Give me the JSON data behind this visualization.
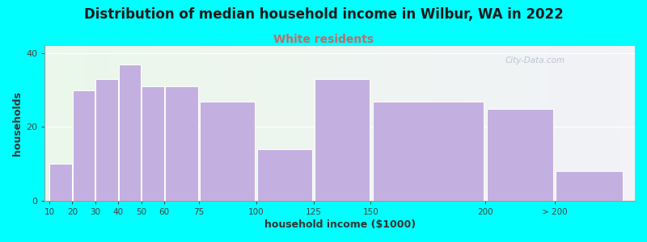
{
  "title": "Distribution of median household income in Wilbur, WA in 2022",
  "subtitle": "White residents",
  "xlabel": "household income ($1000)",
  "ylabel": "households",
  "bar_lefts": [
    10,
    20,
    30,
    40,
    50,
    60,
    75,
    100,
    125,
    150,
    200,
    230
  ],
  "bar_rights": [
    20,
    30,
    40,
    50,
    60,
    75,
    100,
    125,
    150,
    200,
    230,
    260
  ],
  "bar_values": [
    10,
    30,
    33,
    37,
    31,
    31,
    27,
    14,
    33,
    27,
    25,
    8
  ],
  "bar_color": "#c4b0e0",
  "xtick_positions": [
    10,
    20,
    30,
    40,
    50,
    60,
    75,
    100,
    125,
    150,
    200,
    230
  ],
  "xtick_labels": [
    "10",
    "20",
    "30",
    "40",
    "50",
    "60",
    "75",
    "100",
    "125",
    "150",
    "200",
    "> 200"
  ],
  "xlim": [
    8,
    265
  ],
  "ylim": [
    0,
    42
  ],
  "yticks": [
    0,
    20,
    40
  ],
  "background_color": "#00ffff",
  "title_color": "#1a1a1a",
  "subtitle_color": "#cc6666",
  "title_fontsize": 12,
  "subtitle_fontsize": 10,
  "axis_label_fontsize": 9,
  "watermark": "City-Data.com"
}
